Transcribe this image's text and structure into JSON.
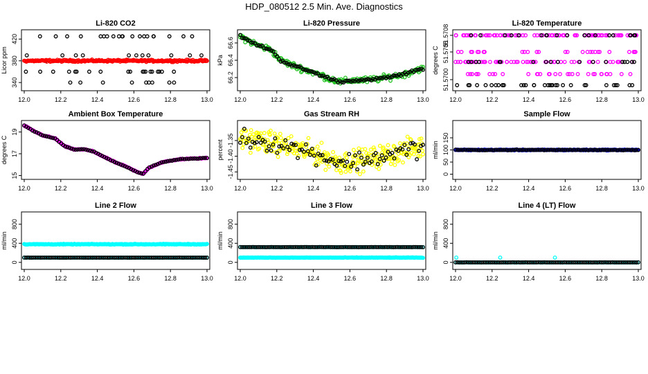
{
  "page": {
    "title": "HDP_080512  2.5 Min. Ave. Diagnostics"
  },
  "colors": {
    "black": "#000000",
    "red": "#ff0000",
    "green": "#22c422",
    "magenta": "#ff00ff",
    "yellow": "#ffff00",
    "blue": "#0000ff",
    "cyan": "#00ffff"
  },
  "chart_data": [
    {
      "type": "scatter",
      "title": "Li-820 CO2",
      "ylabel": "Licor ppm",
      "xlim": [
        12.0,
        13.0
      ],
      "ylim": [
        330,
        432
      ],
      "xticks": [
        "12.0",
        "12.2",
        "12.4",
        "12.6",
        "12.8",
        "13.0"
      ],
      "yticks": [
        {
          "v": 340,
          "label": "340"
        },
        {
          "v": 380,
          "label": "380"
        },
        {
          "v": 420,
          "label": "420"
        }
      ],
      "series": [
        {
          "name": "black",
          "color": "black",
          "style": "scattered",
          "levels": [
            340,
            360,
            380,
            390,
            425
          ],
          "n": 75
        },
        {
          "name": "red",
          "color": "red",
          "style": "flat",
          "y": 380,
          "noise": 1.5,
          "n": 260
        }
      ]
    },
    {
      "type": "scatter",
      "title": "Li-820 Pressure",
      "ylabel": "kPa",
      "xlim": [
        12.0,
        13.0
      ],
      "ylim": [
        66.08,
        66.72
      ],
      "xticks": [
        "12.0",
        "12.2",
        "12.4",
        "12.6",
        "12.8",
        "13.0"
      ],
      "yticks": [
        {
          "v": 66.2,
          "label": "66.2"
        },
        {
          "v": 66.4,
          "label": "66.4"
        },
        {
          "v": 66.6,
          "label": "66.6"
        }
      ],
      "series": [
        {
          "name": "green",
          "color": "green",
          "style": "curve",
          "noise": 0.03,
          "n": 220,
          "pts": [
            [
              12.0,
              66.68
            ],
            [
              12.05,
              66.62
            ],
            [
              12.1,
              66.57
            ],
            [
              12.17,
              66.52
            ],
            [
              12.22,
              66.4
            ],
            [
              12.3,
              66.33
            ],
            [
              12.4,
              66.26
            ],
            [
              12.5,
              66.18
            ],
            [
              12.55,
              66.15
            ],
            [
              12.62,
              66.17
            ],
            [
              12.7,
              66.17
            ],
            [
              12.8,
              66.2
            ],
            [
              12.9,
              66.24
            ],
            [
              12.98,
              66.3
            ]
          ]
        },
        {
          "name": "black",
          "color": "black",
          "style": "curve",
          "noise": 0.012,
          "n": 100,
          "pts": [
            [
              12.0,
              66.68
            ],
            [
              12.05,
              66.62
            ],
            [
              12.1,
              66.57
            ],
            [
              12.17,
              66.52
            ],
            [
              12.22,
              66.4
            ],
            [
              12.3,
              66.33
            ],
            [
              12.4,
              66.26
            ],
            [
              12.5,
              66.18
            ],
            [
              12.55,
              66.15
            ],
            [
              12.62,
              66.17
            ],
            [
              12.7,
              66.17
            ],
            [
              12.8,
              66.2
            ],
            [
              12.9,
              66.24
            ],
            [
              12.98,
              66.3
            ]
          ]
        }
      ]
    },
    {
      "type": "scatter",
      "title": "Li-820 Temperature",
      "ylabel": "degrees C",
      "xlim": [
        12.0,
        13.0
      ],
      "ylim": [
        51.56985,
        51.57085
      ],
      "xticks": [
        "12.0",
        "12.2",
        "12.4",
        "12.6",
        "12.8",
        "13.0"
      ],
      "yticks": [
        {
          "v": 51.57,
          "label": "51.5700"
        },
        {
          "v": 51.5705,
          "label": "51.5705"
        },
        {
          "v": 51.5708,
          "label": "51.5708"
        }
      ],
      "series": [
        {
          "name": "magenta",
          "color": "magenta",
          "style": "scattered",
          "levels": [
            51.5708,
            51.5708,
            51.5708,
            51.57032,
            51.57032,
            51.5705,
            51.5701
          ],
          "n": 200
        },
        {
          "name": "black",
          "color": "black",
          "style": "scattered",
          "levels": [
            51.5708,
            51.57032,
            51.5699
          ],
          "n": 70
        }
      ]
    },
    {
      "type": "scatter",
      "title": "Ambient Box Temperature",
      "ylabel": "degrees C",
      "xlim": [
        12.0,
        13.0
      ],
      "ylim": [
        14.9,
        19.8
      ],
      "xticks": [
        "12.0",
        "12.2",
        "12.4",
        "12.6",
        "12.8",
        "13.0"
      ],
      "yticks": [
        {
          "v": 15,
          "label": "15"
        },
        {
          "v": 17,
          "label": "17"
        },
        {
          "v": 19,
          "label": "19"
        }
      ],
      "series": [
        {
          "name": "magenta",
          "color": "magenta",
          "style": "curve",
          "noise": 0.04,
          "n": 200,
          "pts": [
            [
              12.0,
              19.6
            ],
            [
              12.05,
              19.1
            ],
            [
              12.1,
              18.7
            ],
            [
              12.17,
              18.4
            ],
            [
              12.22,
              17.7
            ],
            [
              12.27,
              17.4
            ],
            [
              12.33,
              17.4
            ],
            [
              12.38,
              17.2
            ],
            [
              12.45,
              16.6
            ],
            [
              12.5,
              16.2
            ],
            [
              12.56,
              15.8
            ],
            [
              12.62,
              15.3
            ],
            [
              12.65,
              15.15
            ],
            [
              12.68,
              15.7
            ],
            [
              12.75,
              16.2
            ],
            [
              12.85,
              16.5
            ],
            [
              12.99,
              16.6
            ]
          ]
        },
        {
          "name": "black",
          "color": "black",
          "style": "curve",
          "noise": 0.02,
          "n": 90,
          "pts": [
            [
              12.0,
              19.6
            ],
            [
              12.05,
              19.1
            ],
            [
              12.1,
              18.7
            ],
            [
              12.17,
              18.4
            ],
            [
              12.22,
              17.7
            ],
            [
              12.27,
              17.4
            ],
            [
              12.33,
              17.4
            ],
            [
              12.38,
              17.2
            ],
            [
              12.45,
              16.6
            ],
            [
              12.5,
              16.2
            ],
            [
              12.56,
              15.8
            ],
            [
              12.62,
              15.3
            ],
            [
              12.65,
              15.15
            ],
            [
              12.68,
              15.7
            ],
            [
              12.75,
              16.2
            ],
            [
              12.85,
              16.5
            ],
            [
              12.99,
              16.6
            ]
          ]
        }
      ]
    },
    {
      "type": "scatter",
      "title": "Gas Stream RH",
      "ylabel": "percent",
      "xlim": [
        12.0,
        13.0
      ],
      "ylim": [
        -1.465,
        -1.295
      ],
      "xticks": [
        "12.0",
        "12.2",
        "12.4",
        "12.6",
        "12.8",
        "13.0"
      ],
      "yticks": [
        {
          "v": -1.45,
          "label": "-1.45"
        },
        {
          "v": -1.4,
          "label": "-1.40"
        },
        {
          "v": -1.35,
          "label": "-1.35"
        }
      ],
      "series": [
        {
          "name": "yellow",
          "color": "yellow",
          "style": "curve",
          "noise": 0.03,
          "n": 320,
          "pts": [
            [
              12.0,
              -1.34
            ],
            [
              12.2,
              -1.36
            ],
            [
              12.4,
              -1.39
            ],
            [
              12.55,
              -1.42
            ],
            [
              12.7,
              -1.41
            ],
            [
              12.85,
              -1.39
            ],
            [
              12.99,
              -1.37
            ]
          ]
        },
        {
          "name": "black",
          "color": "black",
          "style": "curve",
          "noise": 0.025,
          "n": 90,
          "pts": [
            [
              12.0,
              -1.34
            ],
            [
              12.2,
              -1.36
            ],
            [
              12.4,
              -1.39
            ],
            [
              12.55,
              -1.42
            ],
            [
              12.7,
              -1.41
            ],
            [
              12.85,
              -1.39
            ],
            [
              12.99,
              -1.37
            ]
          ]
        }
      ]
    },
    {
      "type": "scatter",
      "title": "Sample Flow",
      "ylabel": "ml/min",
      "xlim": [
        12.0,
        13.0
      ],
      "ylim": [
        -10,
        210
      ],
      "xticks": [
        "12.0",
        "12.2",
        "12.4",
        "12.6",
        "12.8",
        "13.0"
      ],
      "yticks": [
        {
          "v": 0,
          "label": "0"
        },
        {
          "v": 50,
          "label": "50"
        },
        {
          "v": 100,
          "label": "100"
        },
        {
          "v": 150,
          "label": "150"
        }
      ],
      "series": [
        {
          "name": "blue",
          "color": "blue",
          "style": "flat",
          "y": 100,
          "noise": 1.5,
          "n": 240
        },
        {
          "name": "black",
          "color": "black",
          "style": "flat",
          "y": 100,
          "noise": 1.0,
          "n": 100
        }
      ]
    },
    {
      "type": "scatter",
      "title": "Line 2 Flow",
      "ylabel": "ml/min",
      "xlim": [
        12.0,
        13.0
      ],
      "ylim": [
        -90,
        1000
      ],
      "xticks": [
        "12.0",
        "12.2",
        "12.4",
        "12.6",
        "12.8",
        "13.0"
      ],
      "yticks": [
        {
          "v": 0,
          "label": "0"
        },
        {
          "v": 400,
          "label": "400"
        },
        {
          "v": 800,
          "label": "800"
        }
      ],
      "series": [
        {
          "name": "cyan-upper",
          "color": "cyan",
          "style": "flat",
          "y": 380,
          "noise": 6,
          "n": 260
        },
        {
          "name": "cyan-lower",
          "color": "cyan",
          "style": "flat",
          "y": 100,
          "noise": 1,
          "n": 120
        },
        {
          "name": "black",
          "color": "black",
          "style": "flat",
          "y": 100,
          "noise": 1,
          "n": 100
        }
      ]
    },
    {
      "type": "scatter",
      "title": "Line 3 Flow",
      "ylabel": "ml/min",
      "xlim": [
        12.0,
        13.0
      ],
      "ylim": [
        -90,
        1000
      ],
      "xticks": [
        "12.0",
        "12.2",
        "12.4",
        "12.6",
        "12.8",
        "13.0"
      ],
      "yticks": [
        {
          "v": 0,
          "label": "0"
        },
        {
          "v": 400,
          "label": "400"
        },
        {
          "v": 800,
          "label": "800"
        }
      ],
      "series": [
        {
          "name": "cyan-lower",
          "color": "cyan",
          "style": "flat",
          "y": 100,
          "noise": 4,
          "n": 260
        },
        {
          "name": "cyan-upper",
          "color": "cyan",
          "style": "flat",
          "y": 320,
          "noise": 1,
          "n": 120
        },
        {
          "name": "black",
          "color": "black",
          "style": "flat",
          "y": 320,
          "noise": 1,
          "n": 100
        }
      ]
    },
    {
      "type": "scatter",
      "title": "Line 4 (LT) Flow",
      "ylabel": "ml/min",
      "xlim": [
        12.0,
        13.0
      ],
      "ylim": [
        -90,
        1000
      ],
      "xticks": [
        "12.0",
        "12.2",
        "12.4",
        "12.6",
        "12.8",
        "13.0"
      ],
      "yticks": [
        {
          "v": 0,
          "label": "0"
        },
        {
          "v": 400,
          "label": "400"
        },
        {
          "v": 800,
          "label": "800"
        }
      ],
      "series": [
        {
          "name": "cyan",
          "color": "cyan",
          "style": "flat",
          "y": 0,
          "noise": 1,
          "n": 120
        },
        {
          "name": "cyan-spikes",
          "color": "cyan",
          "style": "scattered",
          "levels": [
            100
          ],
          "n": 3
        },
        {
          "name": "black",
          "color": "black",
          "style": "flat",
          "y": 0,
          "noise": 1,
          "n": 100
        }
      ]
    }
  ]
}
